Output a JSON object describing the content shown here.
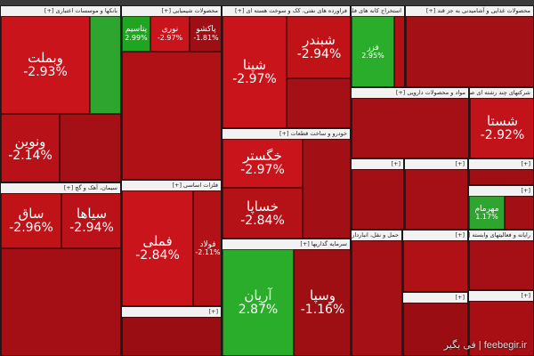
{
  "chart_data": {
    "type": "treemap",
    "watermark": "feebegir.ir | فی بگیر",
    "sectors": [
      {
        "id": "banks",
        "name": "بانکها و موسسات اعتباری [+]",
        "tiles": [
          {
            "name": "وبملت",
            "value": "-2.93%",
            "color": "#c8141a"
          },
          {
            "name": "ونوین",
            "value": "-2.14%",
            "color": "#b81218"
          },
          {
            "name": "",
            "value": "",
            "color": "#a51016"
          },
          {
            "name": "",
            "value": "",
            "color": "#2ea52e"
          },
          {
            "name": "",
            "value": "",
            "color": "#b01117"
          },
          {
            "name": "",
            "value": "",
            "color": "#8e0c10"
          }
        ]
      },
      {
        "id": "chemical",
        "name": "محصولات شیمیایی [+]",
        "tiles": [
          {
            "name": "پتاسیم",
            "value": "2.99%",
            "color": "#1fa51f"
          },
          {
            "name": "نوری",
            "value": "-2.97%",
            "color": "#c8141a"
          },
          {
            "name": "پاکشو",
            "value": "-1.81%",
            "color": "#9d0f14"
          },
          {
            "name": "",
            "value": "",
            "color": "#b01117"
          },
          {
            "name": "",
            "value": "",
            "color": "#8e0c10"
          }
        ]
      },
      {
        "id": "oil",
        "name": "فراورده های نفتی، کک و سوخت هسته ای [+]",
        "tiles": [
          {
            "name": "شپنا",
            "value": "-2.97%",
            "color": "#c8141a"
          },
          {
            "name": "شبندر",
            "value": "-2.94%",
            "color": "#c01318"
          },
          {
            "name": "",
            "value": "",
            "color": "#a51016"
          },
          {
            "name": "",
            "value": "",
            "color": "#b31117"
          }
        ]
      },
      {
        "id": "metal_ore",
        "name": "استخراج کانه های فلزی [+]",
        "tiles": [
          {
            "name": "فزر",
            "value": "2.95%",
            "color": "#2aad2a"
          },
          {
            "name": "",
            "value": "",
            "color": "#b01117"
          }
        ]
      },
      {
        "id": "food",
        "name": "محصولات غذایی و آشامیدنی به جز قند [+]",
        "tiles": [
          {
            "name": "",
            "value": "",
            "color": "#a31016"
          }
        ]
      },
      {
        "id": "pharma",
        "name": "مواد و محصولات دارویی [+]",
        "tiles": [
          {
            "name": "",
            "value": "",
            "color": "#a51016"
          }
        ]
      },
      {
        "id": "multi",
        "name": "شرکتهای چند رشته ای صنعتی [+]",
        "tiles": [
          {
            "name": "شستا",
            "value": "-2.92%",
            "color": "#c3131a"
          },
          {
            "name": "",
            "value": "",
            "color": "#9a0e13"
          }
        ]
      },
      {
        "id": "auto",
        "name": "خودرو و ساخت قطعات [+]",
        "tiles": [
          {
            "name": "خگستر",
            "value": "-2.97%",
            "color": "#c8141a"
          },
          {
            "name": "خساپا",
            "value": "-2.84%",
            "color": "#b51218"
          },
          {
            "name": "",
            "value": "",
            "color": "#a20f15"
          }
        ]
      },
      {
        "id": "cement",
        "name": "سیمان، آهک و گچ [+]",
        "tiles": [
          {
            "name": "ساق",
            "value": "-2.96%",
            "color": "#c01318"
          },
          {
            "name": "سیاها",
            "value": "-2.94%",
            "color": "#ba1218"
          },
          {
            "name": "",
            "value": "",
            "color": "#a30f15"
          }
        ]
      },
      {
        "id": "basic_metals",
        "name": "فلزات اساسی [+]",
        "tiles": [
          {
            "name": "فملی",
            "value": "-2.84%",
            "color": "#c8141a"
          },
          {
            "name": "فولاد",
            "value": "-2.11%",
            "color": "#b11117"
          },
          {
            "name": "",
            "value": "",
            "color": "#2ea52e"
          },
          {
            "name": "",
            "value": "",
            "color": "#a51016"
          }
        ]
      },
      {
        "id": "investment",
        "name": "سرمایه گذاریها [+]",
        "tiles": [
          {
            "name": "آریان",
            "value": "2.87%",
            "color": "#2aad2a"
          },
          {
            "name": "وسپا",
            "value": "-1.16%",
            "color": "#9e0f14"
          },
          {
            "name": "",
            "value": "",
            "color": "#b01117"
          }
        ]
      },
      {
        "id": "other",
        "name": "[+]",
        "tiles": [
          {
            "name": "",
            "value": "",
            "color": "#9a0e13"
          },
          {
            "name": "",
            "value": "",
            "color": "#2ea52e"
          }
        ]
      },
      {
        "id": "other2",
        "name": "[+]",
        "tiles": [
          {
            "name": "",
            "value": "",
            "color": "#a20f15"
          }
        ]
      },
      {
        "id": "other3",
        "name": "[+]",
        "tiles": [
          {
            "name": "",
            "value": "",
            "color": "#a51016"
          }
        ]
      },
      {
        "id": "other4",
        "name": "[+]",
        "tiles": [
          {
            "name": "",
            "value": "",
            "color": "#a00f14"
          }
        ]
      },
      {
        "id": "transport",
        "name": "حمل و نقل، انبارداری و ارتباطات [+]",
        "tiles": [
          {
            "name": "",
            "value": "",
            "color": "#a51016"
          },
          {
            "name": "",
            "value": "",
            "color": "#2ea52e"
          }
        ]
      },
      {
        "id": "mining_other",
        "name": "[+]",
        "tiles": [
          {
            "name": "",
            "value": "",
            "color": "#b01117"
          },
          {
            "name": "",
            "value": "",
            "color": "#2ea52e"
          }
        ]
      },
      {
        "id": "oil_extraction",
        "name": "[+]",
        "tiles": [
          {
            "name": "مهرمام",
            "value": "1.17%",
            "color": "#2ea52e"
          },
          {
            "name": "",
            "value": "",
            "color": "#a20f15"
          }
        ]
      },
      {
        "id": "it",
        "name": "رایانه و فعالیتهای وابسته [+]",
        "tiles": [
          {
            "name": "",
            "value": "",
            "color": "#a51016"
          }
        ]
      },
      {
        "id": "misc1",
        "name": "[+]",
        "tiles": [
          {
            "name": "",
            "value": "",
            "color": "#9a0e13"
          },
          {
            "name": "",
            "value": "",
            "color": "#2ea52e"
          }
        ]
      },
      {
        "id": "misc2",
        "name": "[+]",
        "tiles": [
          {
            "name": "",
            "value": "",
            "color": "#a80f15"
          }
        ]
      }
    ]
  }
}
